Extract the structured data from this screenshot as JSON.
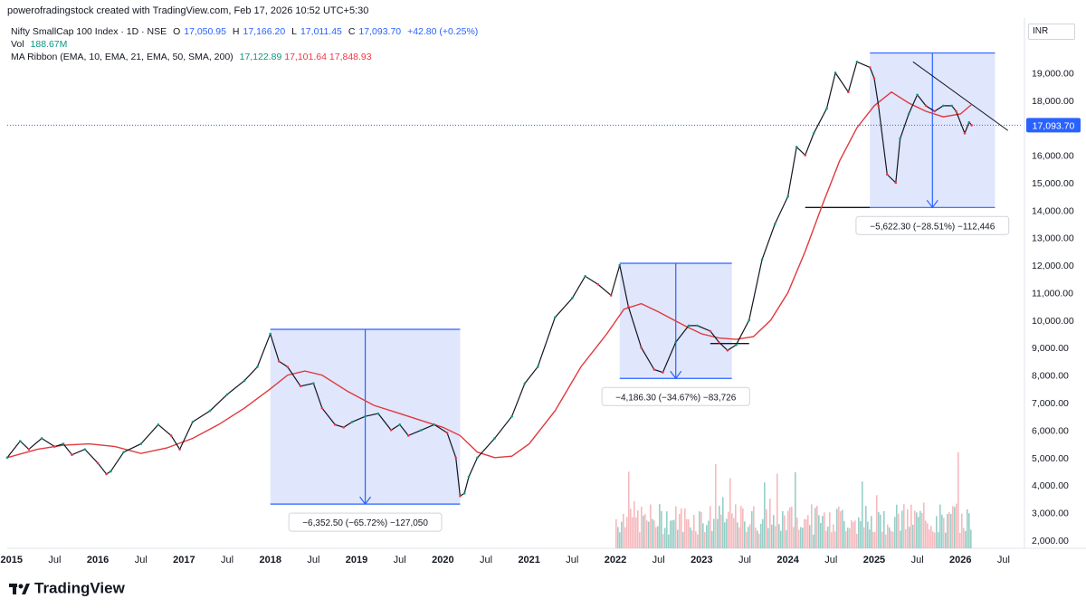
{
  "header": {
    "attribution": "powerofradingstock created with TradingView.com, Feb 17, 2026 10:52 UTC+5:30"
  },
  "legend": {
    "symbol": "Nifty SmallCap 100 Index · 1D · NSE",
    "open_label": "O",
    "open": "17,050.95",
    "high_label": "H",
    "high": "17,166.20",
    "low_label": "L",
    "low": "17,011.45",
    "close_label": "C",
    "close": "17,093.70",
    "change": "+42.80 (+0.25%)",
    "vol_label": "Vol",
    "vol_value": "188.67M",
    "ma_label": "MA Ribbon (EMA, 10, EMA, 21, EMA, 50, SMA, 200)",
    "ma_values": [
      "17,122.89",
      "17,101.64",
      "17,848.93"
    ]
  },
  "currency": "INR",
  "brand": "TradingView",
  "colors": {
    "up": "#089981",
    "down": "#f23645",
    "price": "#131722",
    "ma200": "#e0393e",
    "box_fill": "#d6defb",
    "box_stroke": "#2962ff",
    "price_line": "#2962ff",
    "axis_text": "#131722"
  },
  "chart_data": {
    "type": "line",
    "title": "Nifty SmallCap 100 Index · 1D · NSE",
    "xlabel": "",
    "ylabel": "",
    "x_ticks": [
      "2015",
      "Jul",
      "2016",
      "Jul",
      "2017",
      "Jul",
      "2018",
      "Jul",
      "2019",
      "Jul",
      "2020",
      "Jul",
      "2021",
      "Jul",
      "2022",
      "Jul",
      "2023",
      "Jul",
      "2024",
      "Jul",
      "2025",
      "Jul",
      "2026",
      "Jul"
    ],
    "x_tick_years": [
      2015.0,
      2015.5,
      2016.0,
      2016.5,
      2017.0,
      2017.5,
      2018.0,
      2018.5,
      2019.0,
      2019.5,
      2020.0,
      2020.5,
      2021.0,
      2021.5,
      2022.0,
      2022.5,
      2023.0,
      2023.5,
      2024.0,
      2024.5,
      2025.0,
      2025.5,
      2026.0,
      2026.5
    ],
    "y_ticks": [
      "2,000.00",
      "3,000.00",
      "4,000.00",
      "5,000.00",
      "6,000.00",
      "7,000.00",
      "8,000.00",
      "9,000.00",
      "10,000.00",
      "11,000.00",
      "12,000.00",
      "13,000.00",
      "14,000.00",
      "15,000.00",
      "16,000.00",
      "17,000.00",
      "18,000.00",
      "19,000.00"
    ],
    "y_tick_values": [
      2000,
      3000,
      4000,
      5000,
      6000,
      7000,
      8000,
      9000,
      10000,
      11000,
      12000,
      13000,
      14000,
      15000,
      16000,
      17000,
      18000,
      19000
    ],
    "ylim": [
      1700,
      20200
    ],
    "xlim": [
      2014.95,
      2026.7
    ],
    "series": [
      {
        "name": "Nifty SmallCap 100 Index",
        "x": [
          2014.95,
          2015.1,
          2015.2,
          2015.35,
          2015.5,
          2015.6,
          2015.7,
          2015.85,
          2016.0,
          2016.1,
          2016.15,
          2016.3,
          2016.5,
          2016.7,
          2016.85,
          2016.95,
          2017.1,
          2017.3,
          2017.5,
          2017.7,
          2017.85,
          2018.0,
          2018.1,
          2018.2,
          2018.35,
          2018.5,
          2018.6,
          2018.75,
          2018.85,
          2018.95,
          2019.1,
          2019.25,
          2019.4,
          2019.5,
          2019.6,
          2019.75,
          2019.9,
          2020.05,
          2020.15,
          2020.2,
          2020.25,
          2020.3,
          2020.4,
          2020.6,
          2020.8,
          2020.95,
          2021.1,
          2021.3,
          2021.5,
          2021.65,
          2021.8,
          2021.95,
          2022.05,
          2022.15,
          2022.3,
          2022.45,
          2022.55,
          2022.7,
          2022.85,
          2022.95,
          2023.1,
          2023.2,
          2023.3,
          2023.4,
          2023.55,
          2023.7,
          2023.85,
          2024.0,
          2024.1,
          2024.2,
          2024.3,
          2024.45,
          2024.55,
          2024.7,
          2024.8,
          2024.95,
          2025.0,
          2025.05,
          2025.15,
          2025.25,
          2025.3,
          2025.4,
          2025.5,
          2025.6,
          2025.7,
          2025.8,
          2025.9,
          2025.95,
          2026.05,
          2026.1,
          2026.13
        ],
        "y": [
          5000,
          5600,
          5300,
          5700,
          5400,
          5500,
          5100,
          5300,
          4800,
          4400,
          4500,
          5200,
          5500,
          6200,
          5800,
          5300,
          6300,
          6700,
          7300,
          7800,
          8300,
          9500,
          8500,
          8300,
          7600,
          7700,
          6800,
          6200,
          6100,
          6300,
          6500,
          6600,
          6000,
          6200,
          5800,
          6000,
          6200,
          5900,
          5000,
          3600,
          3700,
          4300,
          5000,
          5700,
          6500,
          7700,
          8300,
          10100,
          10800,
          11600,
          11300,
          10900,
          12000,
          10500,
          9000,
          8200,
          8100,
          9200,
          9800,
          9800,
          9600,
          9200,
          8900,
          9100,
          10000,
          12200,
          13500,
          14500,
          16300,
          16000,
          16800,
          17700,
          19000,
          18300,
          19400,
          19200,
          18800,
          17800,
          15300,
          15000,
          16600,
          17500,
          18200,
          17800,
          17600,
          17800,
          17800,
          17600,
          16800,
          17200,
          17094
        ]
      },
      {
        "name": "SMA 200",
        "x": [
          2014.95,
          2015.3,
          2015.6,
          2015.9,
          2016.2,
          2016.5,
          2016.8,
          2017.1,
          2017.4,
          2017.7,
          2018.0,
          2018.2,
          2018.4,
          2018.6,
          2018.9,
          2019.2,
          2019.5,
          2019.8,
          2020.0,
          2020.2,
          2020.4,
          2020.6,
          2020.8,
          2021.0,
          2021.3,
          2021.6,
          2021.9,
          2022.1,
          2022.3,
          2022.5,
          2022.8,
          2023.0,
          2023.2,
          2023.4,
          2023.6,
          2023.8,
          2024.0,
          2024.2,
          2024.4,
          2024.6,
          2024.8,
          2025.0,
          2025.2,
          2025.4,
          2025.6,
          2025.8,
          2026.0,
          2026.13
        ],
        "y": [
          5000,
          5300,
          5450,
          5500,
          5400,
          5150,
          5350,
          5700,
          6200,
          6800,
          7500,
          8000,
          8150,
          8000,
          7400,
          6900,
          6600,
          6300,
          6100,
          5800,
          5200,
          5000,
          5050,
          5500,
          6700,
          8300,
          9500,
          10400,
          10600,
          10300,
          9800,
          9500,
          9350,
          9300,
          9400,
          10000,
          11000,
          12500,
          14200,
          15800,
          17000,
          17800,
          18300,
          17900,
          17600,
          17400,
          17500,
          17849
        ]
      }
    ],
    "annotations": [
      {
        "label": "−6,352.50 (−65.72%) −127,050",
        "x0": 2018.0,
        "x1": 2020.2,
        "y_top": 9665,
        "y_bottom": 3310
      },
      {
        "label": "−4,186.30 (−34.67%) −83,726",
        "x0": 2022.05,
        "x1": 2023.35,
        "y_top": 12070,
        "y_bottom": 7880
      },
      {
        "label": "−5,622.30 (−28.51%) −112,446",
        "x0": 2024.95,
        "x1": 2026.4,
        "y_top": 19720,
        "y_bottom": 14100
      }
    ],
    "current_price": {
      "label": "17,093.70",
      "value": 17093.7
    },
    "volume": {
      "label": "Vol 188.67M",
      "start": 2022.0,
      "end": 2026.13
    }
  }
}
